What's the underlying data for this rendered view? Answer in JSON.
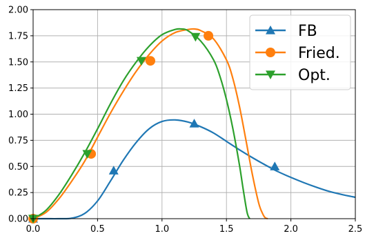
{
  "chart_data": {
    "type": "line",
    "title": "",
    "xlabel": "",
    "ylabel": "",
    "xlim": [
      0,
      2.5
    ],
    "ylim": [
      0,
      2.0
    ],
    "grid": true,
    "legend_position": "top-right",
    "x_ticks": [
      "0.0",
      "0.5",
      "1.0",
      "1.5",
      "2.0",
      "2.5"
    ],
    "y_ticks": [
      "0.00",
      "0.25",
      "0.50",
      "0.75",
      "1.00",
      "1.25",
      "1.50",
      "1.75",
      "2.00"
    ],
    "series": [
      {
        "name": "FB",
        "color": "#1f77b4",
        "marker": "triangle-up",
        "x": [
          0,
          0.1,
          0.2,
          0.3,
          0.4,
          0.5,
          0.6,
          0.7,
          0.8,
          0.9,
          1.0,
          1.1,
          1.2,
          1.3,
          1.4,
          1.5,
          1.6,
          1.7,
          1.8,
          1.9,
          2.0,
          2.1,
          2.2,
          2.3,
          2.4,
          2.5
        ],
        "y": [
          0,
          0,
          0,
          0.005,
          0.05,
          0.17,
          0.36,
          0.56,
          0.73,
          0.86,
          0.93,
          0.945,
          0.925,
          0.88,
          0.82,
          0.74,
          0.66,
          0.585,
          0.515,
          0.45,
          0.395,
          0.345,
          0.3,
          0.26,
          0.23,
          0.205
        ],
        "marker_x": [
          0.0,
          0.625,
          1.25,
          1.875
        ],
        "marker_y": [
          0.0,
          0.46,
          0.91,
          0.5
        ]
      },
      {
        "name": "Fried.",
        "color": "#ff7f0e",
        "marker": "circle",
        "x": [
          0,
          0.1,
          0.2,
          0.3,
          0.4,
          0.5,
          0.6,
          0.7,
          0.8,
          0.9,
          1.0,
          1.1,
          1.2,
          1.25,
          1.3,
          1.4,
          1.5,
          1.55,
          1.6,
          1.65,
          1.7,
          1.75,
          1.78,
          1.8,
          1.82
        ],
        "y": [
          0,
          0.06,
          0.19,
          0.36,
          0.55,
          0.78,
          1.01,
          1.22,
          1.41,
          1.57,
          1.7,
          1.78,
          1.81,
          1.815,
          1.8,
          1.72,
          1.52,
          1.34,
          1.08,
          0.76,
          0.43,
          0.15,
          0.05,
          0.01,
          0
        ],
        "marker_x": [
          0.0,
          0.45,
          0.91,
          1.36
        ],
        "marker_y": [
          0.0,
          0.62,
          1.51,
          1.75
        ]
      },
      {
        "name": "Opt.",
        "color": "#2ca02c",
        "marker": "triangle-down",
        "x": [
          0,
          0.1,
          0.2,
          0.3,
          0.4,
          0.5,
          0.6,
          0.7,
          0.8,
          0.9,
          1.0,
          1.1,
          1.15,
          1.2,
          1.3,
          1.4,
          1.45,
          1.5,
          1.55,
          1.6,
          1.63,
          1.66,
          1.68
        ],
        "y": [
          0,
          0.08,
          0.23,
          0.42,
          0.63,
          0.86,
          1.1,
          1.32,
          1.5,
          1.65,
          1.76,
          1.81,
          1.815,
          1.8,
          1.7,
          1.52,
          1.36,
          1.14,
          0.86,
          0.52,
          0.28,
          0.06,
          0
        ],
        "marker_x": [
          0.0,
          0.42,
          0.84,
          1.26
        ],
        "marker_y": [
          0.0,
          0.62,
          1.51,
          1.74
        ]
      }
    ]
  }
}
